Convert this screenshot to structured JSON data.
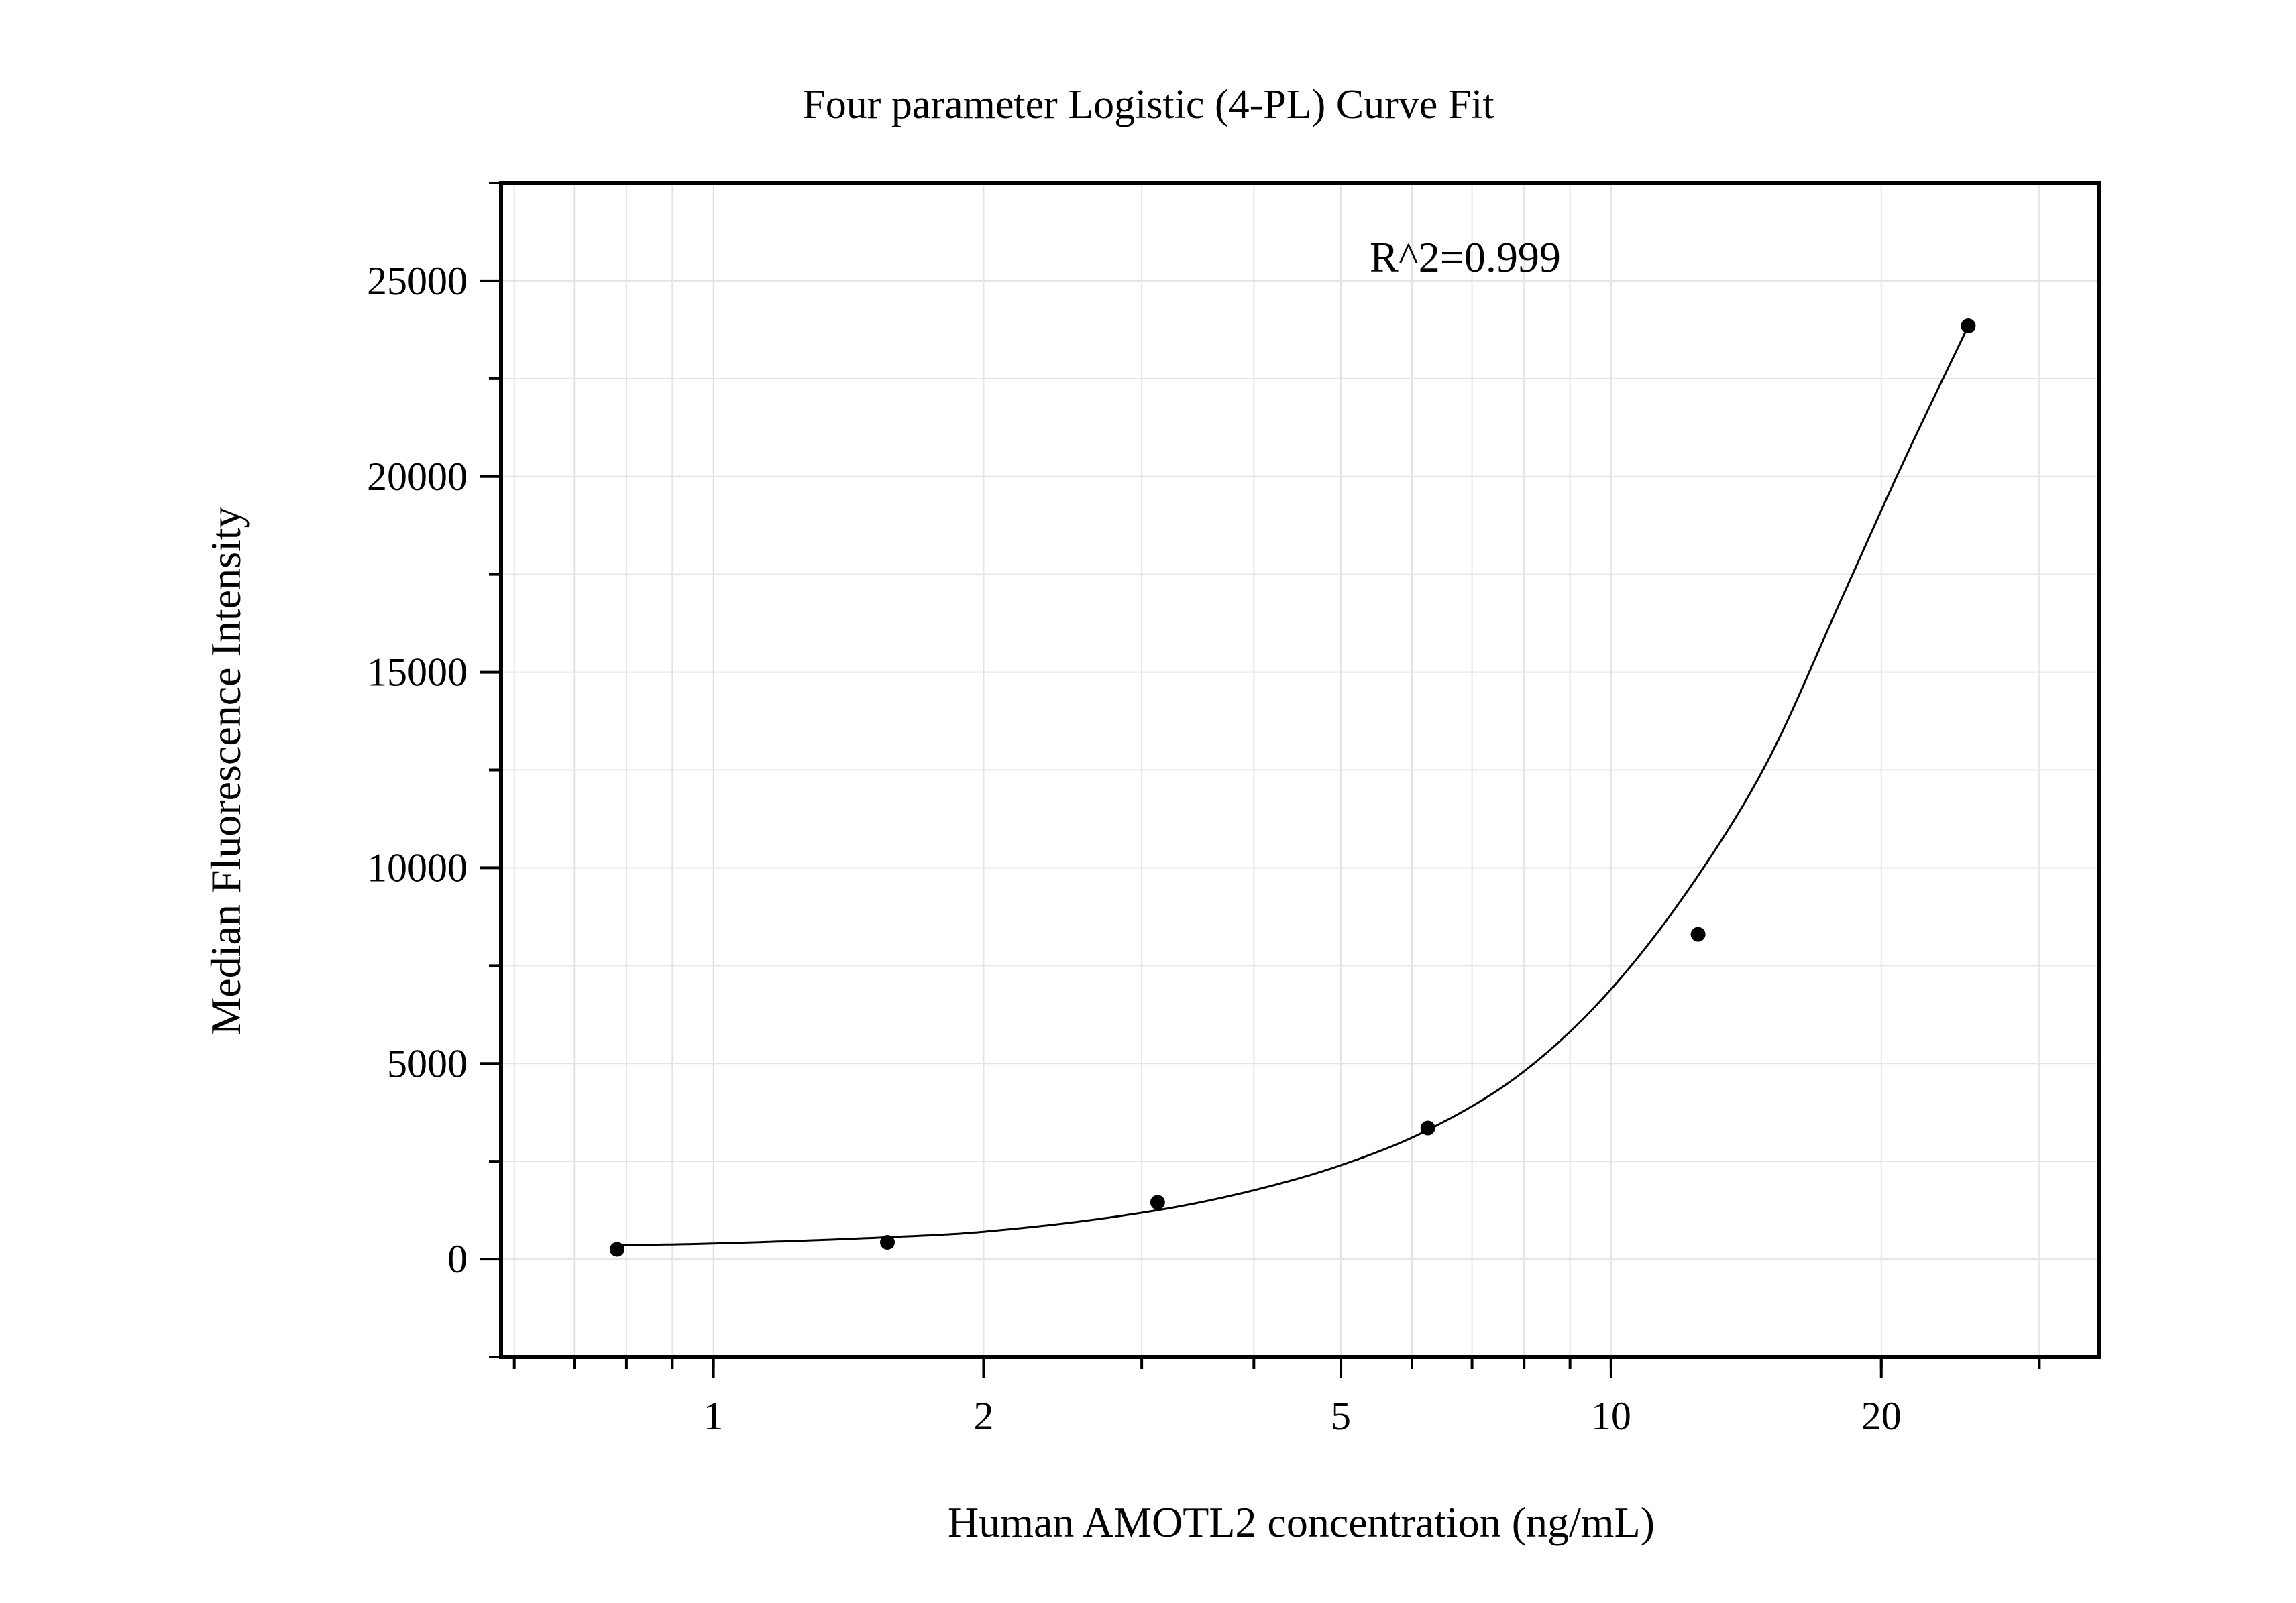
{
  "chart_data": {
    "type": "scatter",
    "title": "Four parameter Logistic (4-PL) Curve Fit",
    "xlabel": "Human AMOTL2 concentration (ng/mL)",
    "ylabel": "Median Fluorescence Intensity",
    "x_scale": "log",
    "xlim": [
      0.58,
      35
    ],
    "ylim": [
      -2500,
      27500
    ],
    "x_ticks": [
      1,
      2,
      5,
      10,
      20
    ],
    "x_tick_labels": [
      "1",
      "2",
      "5",
      "10",
      "20"
    ],
    "y_ticks": [
      0,
      5000,
      10000,
      15000,
      20000,
      25000
    ],
    "y_tick_labels": [
      "0",
      "5000",
      "10000",
      "15000",
      "20000",
      "25000"
    ],
    "grid": true,
    "annotation": "R^2=0.999",
    "series": [
      {
        "marker": "filled-circle",
        "color": "#000000",
        "x": [
          0.781,
          1.5625,
          3.125,
          6.25,
          12.5,
          25
        ],
        "y": [
          250,
          430,
          1450,
          3350,
          8300,
          23850
        ]
      }
    ],
    "fit": {
      "model": "4PL",
      "color": "#000000",
      "x": [
        0.781,
        1.0,
        1.5625,
        2.0,
        3.125,
        4.0,
        5.0,
        6.25,
        8.0,
        10.0,
        12.5,
        15.0,
        18.0,
        21.0,
        25.0
      ],
      "y": [
        350,
        400,
        560,
        700,
        1250,
        1760,
        2400,
        3300,
        4800,
        6900,
        9800,
        12800,
        16800,
        20200,
        23850
      ]
    }
  }
}
